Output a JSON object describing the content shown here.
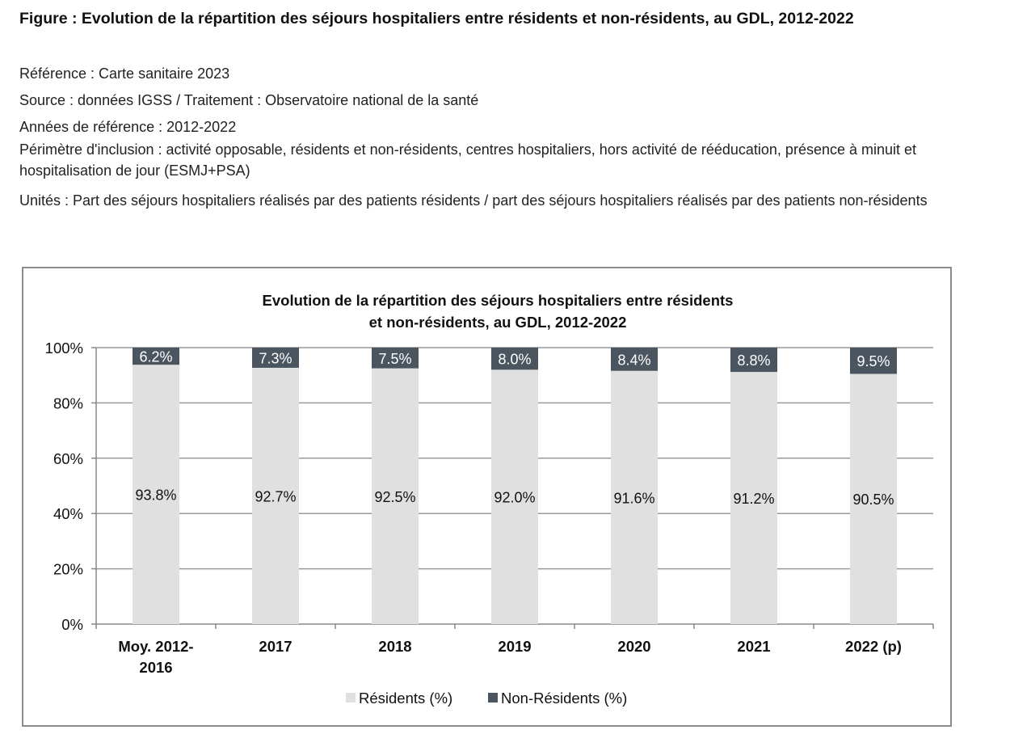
{
  "figure": {
    "title": "Figure : Evolution de la répartition des séjours hospitaliers entre résidents et non-résidents, au GDL, 2012-2022",
    "reference": "Référence : Carte sanitaire 2023",
    "source": "Source : données IGSS / Traitement : Observatoire national de la santé",
    "years": "Années de référence : 2012-2022",
    "scope": "Périmètre d'inclusion : activité opposable, résidents et non-résidents, centres hospitaliers, hors activité de rééducation, présence à minuit et hospitalisation de jour (ESMJ+PSA)",
    "units": "Unités : Part des séjours hospitaliers réalisés par des patients résidents / part des séjours hospitaliers réalisés par des patients non-résidents"
  },
  "chart_data": {
    "type": "bar",
    "stacked": true,
    "title": "Evolution de la répartition des séjours hospitaliers entre résidents et non-résidents, au GDL, 2012-2022",
    "title_lines": [
      "Evolution de la répartition des séjours hospitaliers entre résidents",
      "et non-résidents, au GDL, 2012-2022"
    ],
    "categories": [
      "Moy. 2012-2016",
      "2017",
      "2018",
      "2019",
      "2020",
      "2021",
      "2022 (p)"
    ],
    "category_lines": [
      [
        "Moy. 2012-",
        "2016"
      ],
      [
        "2017"
      ],
      [
        "2018"
      ],
      [
        "2019"
      ],
      [
        "2020"
      ],
      [
        "2021"
      ],
      [
        "2022 (p)"
      ]
    ],
    "series": [
      {
        "name": "Résidents (%)",
        "color": "#e0e0e0",
        "values": [
          93.8,
          92.7,
          92.5,
          92.0,
          91.6,
          91.2,
          90.5
        ],
        "labels": [
          "93.8%",
          "92.7%",
          "92.5%",
          "92.0%",
          "91.6%",
          "91.2%",
          "90.5%"
        ]
      },
      {
        "name": "Non-Résidents (%)",
        "color": "#4a555f",
        "values": [
          6.2,
          7.3,
          7.5,
          8.0,
          8.4,
          8.8,
          9.5
        ],
        "labels": [
          "6.2%",
          "7.3%",
          "7.5%",
          "8.0%",
          "8.4%",
          "8.8%",
          "9.5%"
        ]
      }
    ],
    "ylim": [
      0,
      100
    ],
    "yticks": [
      0,
      20,
      40,
      60,
      80,
      100
    ],
    "ytick_labels": [
      "0%",
      "20%",
      "40%",
      "60%",
      "80%",
      "100%"
    ],
    "grid": true,
    "legend": "bottom"
  }
}
